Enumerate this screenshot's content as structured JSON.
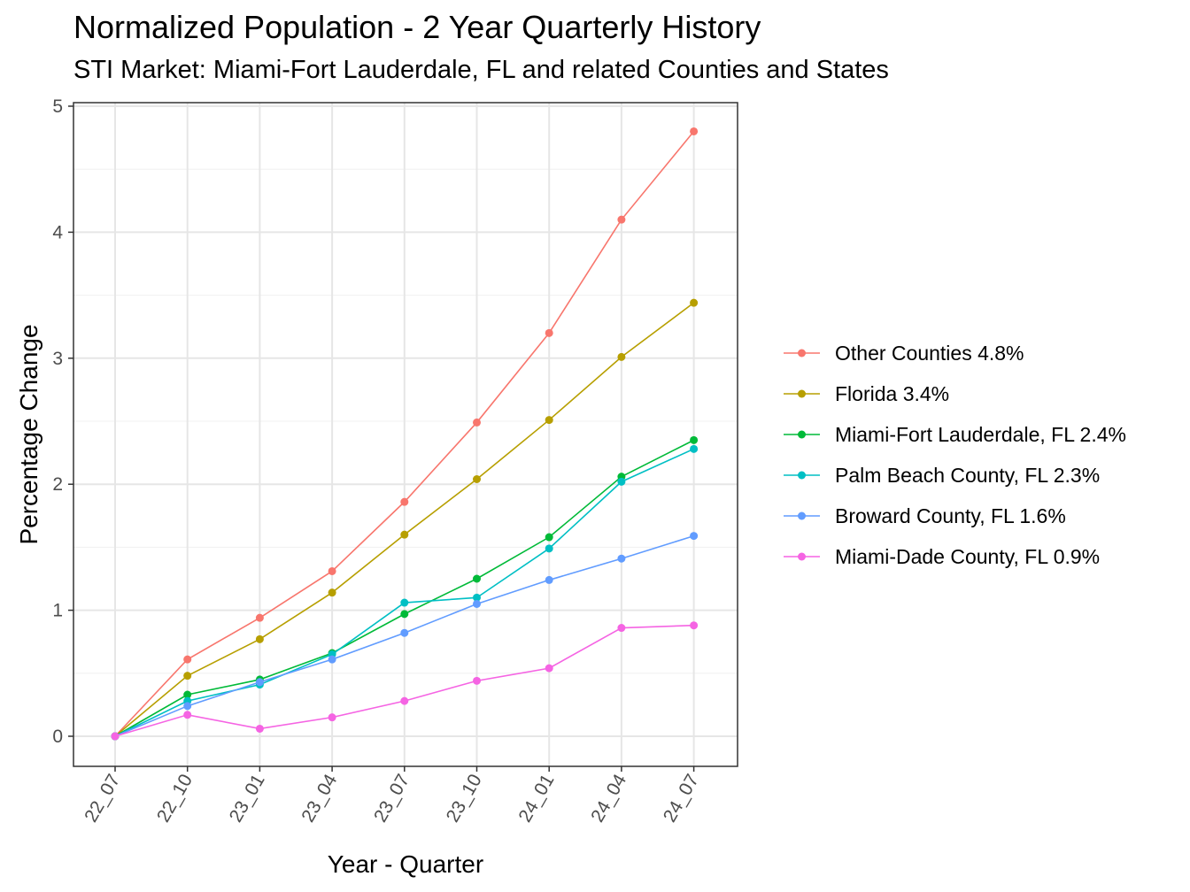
{
  "chart_data": {
    "type": "line",
    "title": "Normalized Population - 2 Year Quarterly History",
    "subtitle": "STI Market: Miami-Fort Lauderdale, FL and related Counties and States",
    "xlabel": "Year - Quarter",
    "ylabel": "Percentage Change",
    "ylim": [
      0,
      5
    ],
    "yticks": [
      0,
      1,
      2,
      3,
      4,
      5
    ],
    "grid": true,
    "legend_position": "right",
    "categories": [
      "22_07",
      "22_10",
      "23_01",
      "23_04",
      "23_07",
      "23_10",
      "24_01",
      "24_04",
      "24_07"
    ],
    "series": [
      {
        "name": "Other Counties 4.8%",
        "color": "#F8766D",
        "values": [
          0,
          0.61,
          0.94,
          1.31,
          1.86,
          2.49,
          3.2,
          4.1,
          4.8
        ]
      },
      {
        "name": "Florida 3.4%",
        "color": "#B79F00",
        "values": [
          0,
          0.48,
          0.77,
          1.14,
          1.6,
          2.04,
          2.51,
          3.01,
          3.44
        ]
      },
      {
        "name": "Miami-Fort Lauderdale, FL 2.4%",
        "color": "#00BA38",
        "values": [
          0,
          0.33,
          0.45,
          0.66,
          0.97,
          1.25,
          1.58,
          2.06,
          2.35
        ]
      },
      {
        "name": "Palm Beach County, FL 2.3%",
        "color": "#00BFC4",
        "values": [
          0,
          0.28,
          0.41,
          0.65,
          1.06,
          1.1,
          1.49,
          2.02,
          2.28
        ]
      },
      {
        "name": "Broward County, FL 1.6%",
        "color": "#619CFF",
        "values": [
          0,
          0.24,
          0.43,
          0.61,
          0.82,
          1.05,
          1.24,
          1.41,
          1.59
        ]
      },
      {
        "name": "Miami-Dade County, FL 0.9%",
        "color": "#F564E3",
        "values": [
          0,
          0.17,
          0.06,
          0.15,
          0.28,
          0.44,
          0.54,
          0.86,
          0.88
        ]
      }
    ]
  }
}
